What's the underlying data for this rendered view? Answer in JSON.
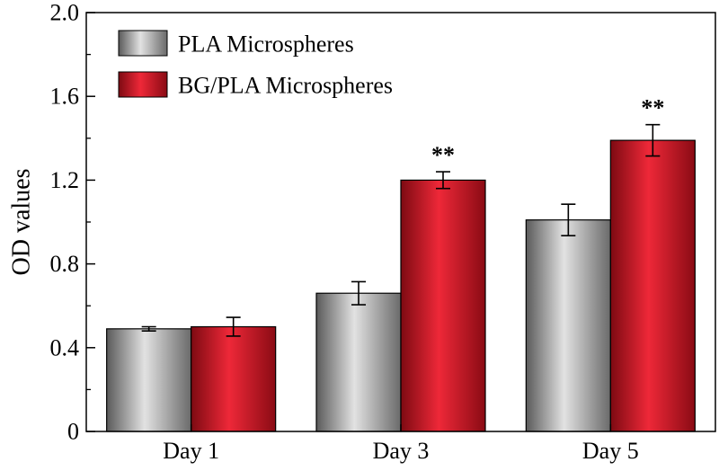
{
  "chart_data": {
    "type": "bar",
    "categories": [
      "Day 1",
      "Day 3",
      "Day 5"
    ],
    "series": [
      {
        "name": "PLA Microspheres",
        "values": [
          0.49,
          0.66,
          1.01
        ],
        "errors": [
          0.01,
          0.055,
          0.075
        ],
        "color": "#9a9a9a",
        "significance": [
          "",
          "",
          ""
        ]
      },
      {
        "name": "BG/PLA Microspheres",
        "values": [
          0.5,
          1.2,
          1.39
        ],
        "errors": [
          0.045,
          0.04,
          0.075
        ],
        "color": "#d41f2b",
        "significance": [
          "",
          "**",
          "**"
        ]
      }
    ],
    "xlabel": "",
    "ylabel": "OD values",
    "ylim": [
      0,
      2.0
    ],
    "yticks": [
      "0",
      "0.4",
      "0.8",
      "1.2",
      "1.6",
      "2.0"
    ],
    "grid": false,
    "legend_position": "top-left"
  }
}
